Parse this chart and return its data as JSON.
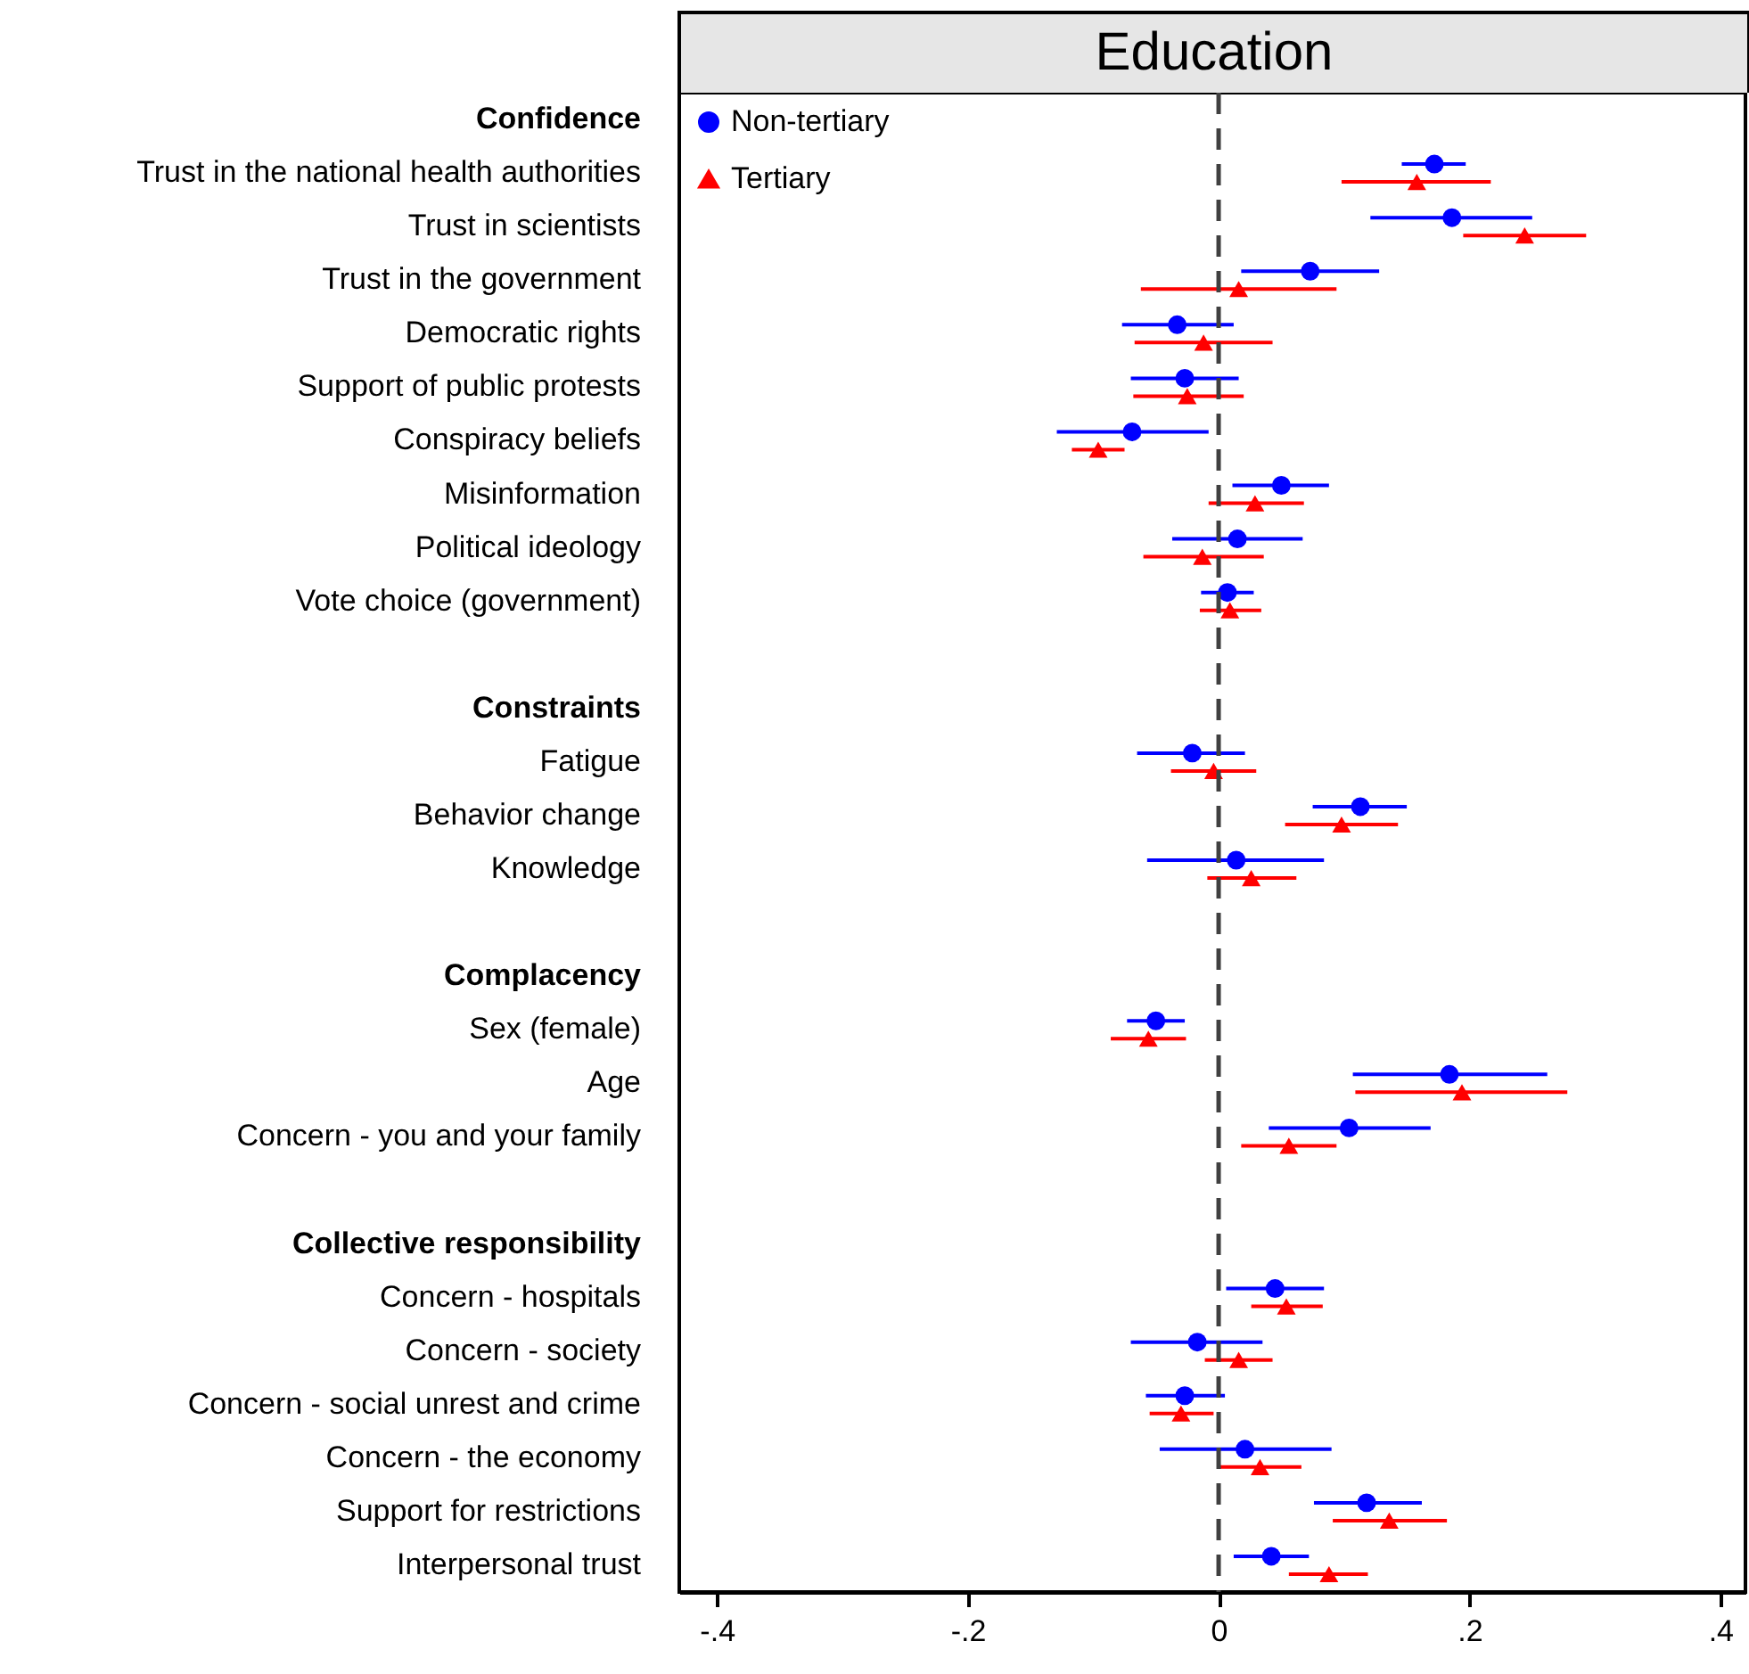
{
  "chart_data": {
    "type": "scatter",
    "orientation": "horizontal",
    "title": "Education",
    "categories": [
      "Confidence",
      "Trust in the national health authorities",
      "Trust in scientists",
      "Trust in the government",
      "Democratic rights",
      "Support of public protests",
      "Conspiracy beliefs",
      "Misinformation",
      "Political ideology",
      "Vote choice (government)",
      null,
      "Constraints",
      "Fatigue",
      "Behavior change",
      "Knowledge",
      null,
      "Complacency",
      "Sex (female)",
      "Age",
      "Concern - you and your family",
      null,
      "Collective responsibility",
      "Concern - hospitals",
      "Concern - society",
      "Concern - social unrest and crime",
      "Concern - the economy",
      "Support for restrictions",
      "Interpersonal trust"
    ],
    "series": [
      {
        "name": "Non-tertiary",
        "color": "#0000ff",
        "marker": "circle",
        "values": [
          null,
          0.172,
          0.186,
          0.073,
          -0.033,
          -0.027,
          -0.069,
          0.05,
          0.015,
          0.007,
          null,
          null,
          -0.021,
          0.113,
          0.014,
          null,
          null,
          -0.05,
          0.184,
          0.104,
          null,
          null,
          0.045,
          -0.017,
          -0.027,
          0.021,
          0.118,
          0.042
        ],
        "errors": [
          null,
          [
            0.146,
            0.197
          ],
          [
            0.121,
            0.25
          ],
          [
            0.018,
            0.128
          ],
          [
            -0.077,
            0.012
          ],
          [
            -0.07,
            0.016
          ],
          [
            -0.129,
            -0.008
          ],
          [
            0.011,
            0.088
          ],
          [
            -0.037,
            0.067
          ],
          [
            -0.014,
            0.028
          ],
          null,
          null,
          [
            -0.065,
            0.021
          ],
          [
            0.075,
            0.15
          ],
          [
            -0.057,
            0.084
          ],
          null,
          null,
          [
            -0.073,
            -0.027
          ],
          [
            0.107,
            0.262
          ],
          [
            0.04,
            0.169
          ],
          null,
          null,
          [
            0.006,
            0.084
          ],
          [
            -0.07,
            0.035
          ],
          [
            -0.058,
            0.005
          ],
          [
            -0.047,
            0.09
          ],
          [
            0.076,
            0.162
          ],
          [
            0.012,
            0.072
          ]
        ]
      },
      {
        "name": "Tertiary",
        "color": "#ff0000",
        "marker": "triangle",
        "values": [
          null,
          0.158,
          0.244,
          0.016,
          -0.012,
          -0.025,
          -0.096,
          0.029,
          -0.013,
          0.009,
          null,
          null,
          -0.004,
          0.098,
          0.026,
          null,
          null,
          -0.056,
          0.194,
          0.056,
          null,
          null,
          0.054,
          0.016,
          -0.03,
          0.033,
          0.136,
          0.088
        ],
        "errors": [
          null,
          [
            0.098,
            0.217
          ],
          [
            0.195,
            0.293
          ],
          [
            -0.062,
            0.094
          ],
          [
            -0.067,
            0.043
          ],
          [
            -0.068,
            0.02
          ],
          [
            -0.117,
            -0.075
          ],
          [
            -0.008,
            0.068
          ],
          [
            -0.06,
            0.036
          ],
          [
            -0.015,
            0.034
          ],
          null,
          null,
          [
            -0.038,
            0.03
          ],
          [
            0.053,
            0.143
          ],
          [
            -0.009,
            0.062
          ],
          null,
          null,
          [
            -0.086,
            -0.026
          ],
          [
            0.109,
            0.278
          ],
          [
            0.018,
            0.094
          ],
          null,
          null,
          [
            0.026,
            0.083
          ],
          [
            -0.011,
            0.043
          ],
          [
            -0.055,
            -0.004
          ],
          [
            0.0,
            0.066
          ],
          [
            0.091,
            0.182
          ],
          [
            0.056,
            0.119
          ]
        ]
      }
    ],
    "xlim": [
      -0.43,
      0.42
    ],
    "xticks": [
      {
        "value": -0.4,
        "label": "-.4"
      },
      {
        "value": -0.2,
        "label": "-.2"
      },
      0,
      {
        "value": 0.2,
        "label": ".2"
      },
      {
        "value": 0.4,
        "label": ".4"
      }
    ],
    "ref_lines": [
      {
        "axis": "x",
        "value": 0,
        "color": "#404040",
        "line_style": "dashed"
      }
    ],
    "legend": "top left"
  }
}
